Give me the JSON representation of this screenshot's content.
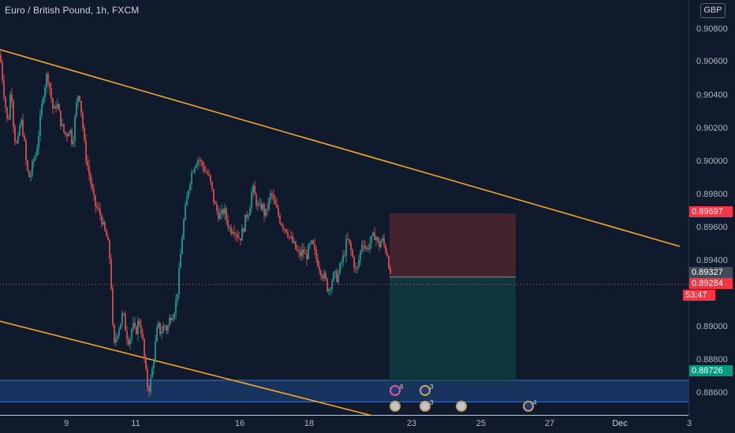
{
  "header": {
    "title": "Euro / British Pound, 1h, FXCM",
    "currency": "GBP"
  },
  "price_axis": {
    "ticks": [
      "0.90800",
      "0.90600",
      "0.90400",
      "0.90200",
      "0.90000",
      "0.89800",
      "0.89600",
      "0.89400",
      "0.89000",
      "0.88800",
      "0.88600"
    ],
    "tags": {
      "stop": "0.89697",
      "entry": "0.89327",
      "current": "0.89284",
      "countdown": "53:47",
      "target": "0.88726"
    }
  },
  "time_axis": {
    "ticks": [
      "9",
      "11",
      "16",
      "18",
      "23",
      "25",
      "27",
      "Dec",
      "3"
    ]
  },
  "events": {
    "counts": [
      "6",
      "3",
      "3",
      "4"
    ]
  },
  "colors": {
    "background": "#0f1a2c",
    "up_candle": "#26a69a",
    "down_candle": "#ef5350",
    "trendline": "#f5a623",
    "zone": "#1f4a8a",
    "stop_box": "#4a2530",
    "target_box": "#0f3a3e"
  },
  "chart_data": {
    "type": "candlestick",
    "symbol": "Euro / British Pound",
    "interval": "1h",
    "source": "FXCM",
    "ylim": [
      0.8852,
      0.9094
    ],
    "price_path": [
      [
        0,
        0.9062
      ],
      [
        5,
        0.904
      ],
      [
        10,
        0.902
      ],
      [
        14,
        0.9045
      ],
      [
        18,
        0.9015
      ],
      [
        22,
        0.9008
      ],
      [
        26,
        0.9025
      ],
      [
        30,
        0.9015
      ],
      [
        34,
        0.8995
      ],
      [
        38,
        0.899
      ],
      [
        42,
        0.9
      ],
      [
        46,
        0.9005
      ],
      [
        50,
        0.902
      ],
      [
        55,
        0.904
      ],
      [
        60,
        0.9052
      ],
      [
        64,
        0.904
      ],
      [
        68,
        0.9028
      ],
      [
        72,
        0.9035
      ],
      [
        76,
        0.9025
      ],
      [
        80,
        0.9018
      ],
      [
        84,
        0.9015
      ],
      [
        88,
        0.902
      ],
      [
        92,
        0.901
      ],
      [
        96,
        0.903
      ],
      [
        100,
        0.9042
      ],
      [
        104,
        0.9025
      ],
      [
        108,
        0.9005
      ],
      [
        112,
        0.8995
      ],
      [
        116,
        0.8985
      ],
      [
        120,
        0.8975
      ],
      [
        124,
        0.8972
      ],
      [
        128,
        0.8968
      ],
      [
        132,
        0.896
      ],
      [
        136,
        0.8955
      ],
      [
        140,
        0.894
      ],
      [
        144,
        0.889
      ],
      [
        148,
        0.89
      ],
      [
        152,
        0.8905
      ],
      [
        156,
        0.8912
      ],
      [
        160,
        0.89
      ],
      [
        164,
        0.8895
      ],
      [
        168,
        0.8905
      ],
      [
        172,
        0.89
      ],
      [
        176,
        0.8908
      ],
      [
        180,
        0.89
      ],
      [
        184,
        0.888
      ],
      [
        188,
        0.8866
      ],
      [
        192,
        0.8875
      ],
      [
        196,
        0.889
      ],
      [
        200,
        0.8905
      ],
      [
        204,
        0.89
      ],
      [
        208,
        0.8905
      ],
      [
        212,
        0.8902
      ],
      [
        216,
        0.891
      ],
      [
        220,
        0.8912
      ],
      [
        224,
        0.892
      ],
      [
        228,
        0.894
      ],
      [
        232,
        0.8962
      ],
      [
        236,
        0.8975
      ],
      [
        240,
        0.8988
      ],
      [
        244,
        0.8995
      ],
      [
        248,
        0.9
      ],
      [
        252,
        0.9002
      ],
      [
        256,
        0.8998
      ],
      [
        260,
        0.8995
      ],
      [
        264,
        0.8992
      ],
      [
        268,
        0.8985
      ],
      [
        272,
        0.8975
      ],
      [
        276,
        0.897
      ],
      [
        280,
        0.8968
      ],
      [
        284,
        0.8972
      ],
      [
        288,
        0.8965
      ],
      [
        292,
        0.896
      ],
      [
        296,
        0.8962
      ],
      [
        300,
        0.8958
      ],
      [
        304,
        0.8955
      ],
      [
        308,
        0.896
      ],
      [
        312,
        0.8968
      ],
      [
        316,
        0.8972
      ],
      [
        320,
        0.8985
      ],
      [
        324,
        0.8978
      ],
      [
        328,
        0.8972
      ],
      [
        332,
        0.8975
      ],
      [
        336,
        0.8968
      ],
      [
        340,
        0.8975
      ],
      [
        344,
        0.8982
      ],
      [
        348,
        0.8975
      ],
      [
        352,
        0.897
      ],
      [
        356,
        0.8965
      ],
      [
        360,
        0.8962
      ],
      [
        364,
        0.896
      ],
      [
        368,
        0.8955
      ],
      [
        372,
        0.8952
      ],
      [
        376,
        0.8948
      ],
      [
        380,
        0.8945
      ],
      [
        384,
        0.8948
      ],
      [
        388,
        0.8944
      ],
      [
        392,
        0.895
      ],
      [
        396,
        0.8952
      ],
      [
        400,
        0.8945
      ],
      [
        404,
        0.894
      ],
      [
        408,
        0.8935
      ],
      [
        412,
        0.8932
      ],
      [
        416,
        0.8925
      ],
      [
        420,
        0.893
      ],
      [
        424,
        0.8934
      ],
      [
        428,
        0.8932
      ],
      [
        432,
        0.894
      ],
      [
        436,
        0.8945
      ],
      [
        440,
        0.8955
      ],
      [
        444,
        0.895
      ],
      [
        448,
        0.8942
      ],
      [
        452,
        0.8935
      ],
      [
        456,
        0.8945
      ],
      [
        460,
        0.8955
      ],
      [
        464,
        0.8948
      ],
      [
        468,
        0.8952
      ],
      [
        472,
        0.8955
      ],
      [
        476,
        0.8958
      ],
      [
        480,
        0.895
      ],
      [
        484,
        0.8955
      ],
      [
        488,
        0.895
      ],
      [
        492,
        0.8945
      ],
      [
        496,
        0.8928
      ]
    ]
  }
}
